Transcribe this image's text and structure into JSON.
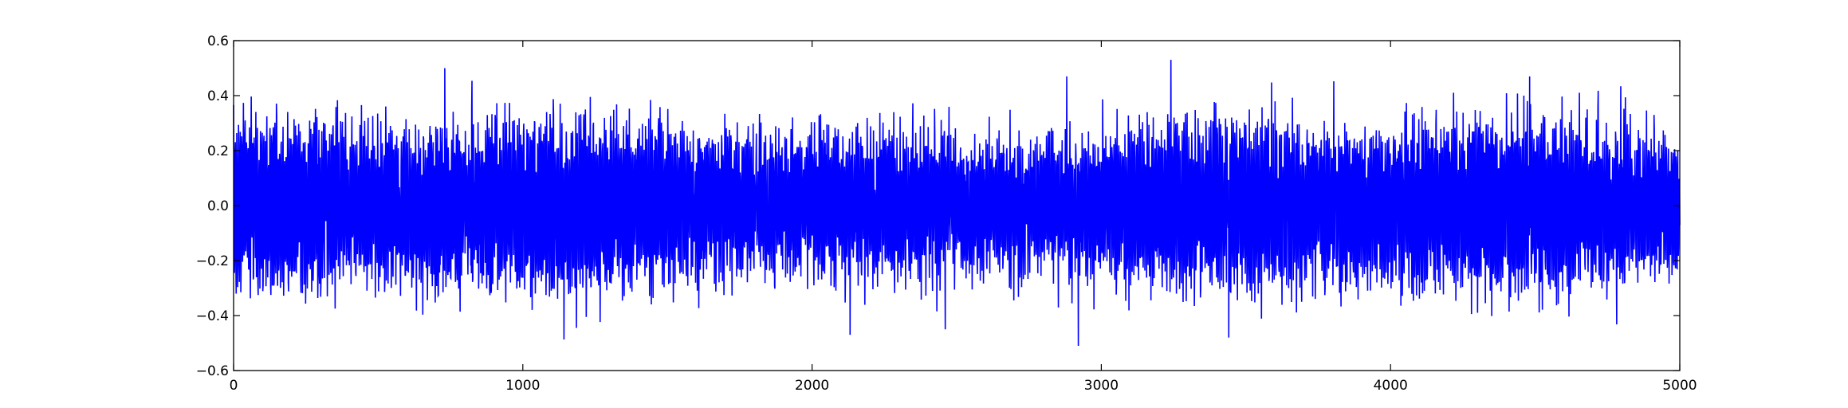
{
  "chart_data": {
    "type": "line",
    "title": "",
    "xlabel": "",
    "ylabel": "",
    "xlim": [
      0,
      5000
    ],
    "ylim": [
      -0.6,
      0.6
    ],
    "x_ticks": [
      0,
      1000,
      2000,
      3000,
      4000,
      5000
    ],
    "y_ticks": [
      -0.6,
      -0.4,
      -0.2,
      0.0,
      0.2,
      0.4,
      0.6
    ],
    "x_tick_labels": [
      "0",
      "1000",
      "2000",
      "3000",
      "4000",
      "5000"
    ],
    "y_tick_labels": [
      "−0.6",
      "−0.4",
      "−0.2",
      "0.0",
      "0.2",
      "0.4",
      "0.6"
    ],
    "grid": false,
    "legend": "none",
    "series": [
      {
        "color": "#0000ff",
        "n_points": 5000,
        "mean": 0.0,
        "typical_amplitude": [
          -0.3,
          0.3
        ],
        "max": 0.53,
        "min": -0.51,
        "peaks": [
          {
            "x": 730,
            "y": 0.5
          },
          {
            "x": 2880,
            "y": 0.47
          },
          {
            "x": 3240,
            "y": 0.53
          },
          {
            "x": 4480,
            "y": 0.47
          },
          {
            "x": 2920,
            "y": -0.51
          },
          {
            "x": 3440,
            "y": -0.48
          },
          {
            "x": 2460,
            "y": -0.45
          }
        ]
      }
    ]
  }
}
